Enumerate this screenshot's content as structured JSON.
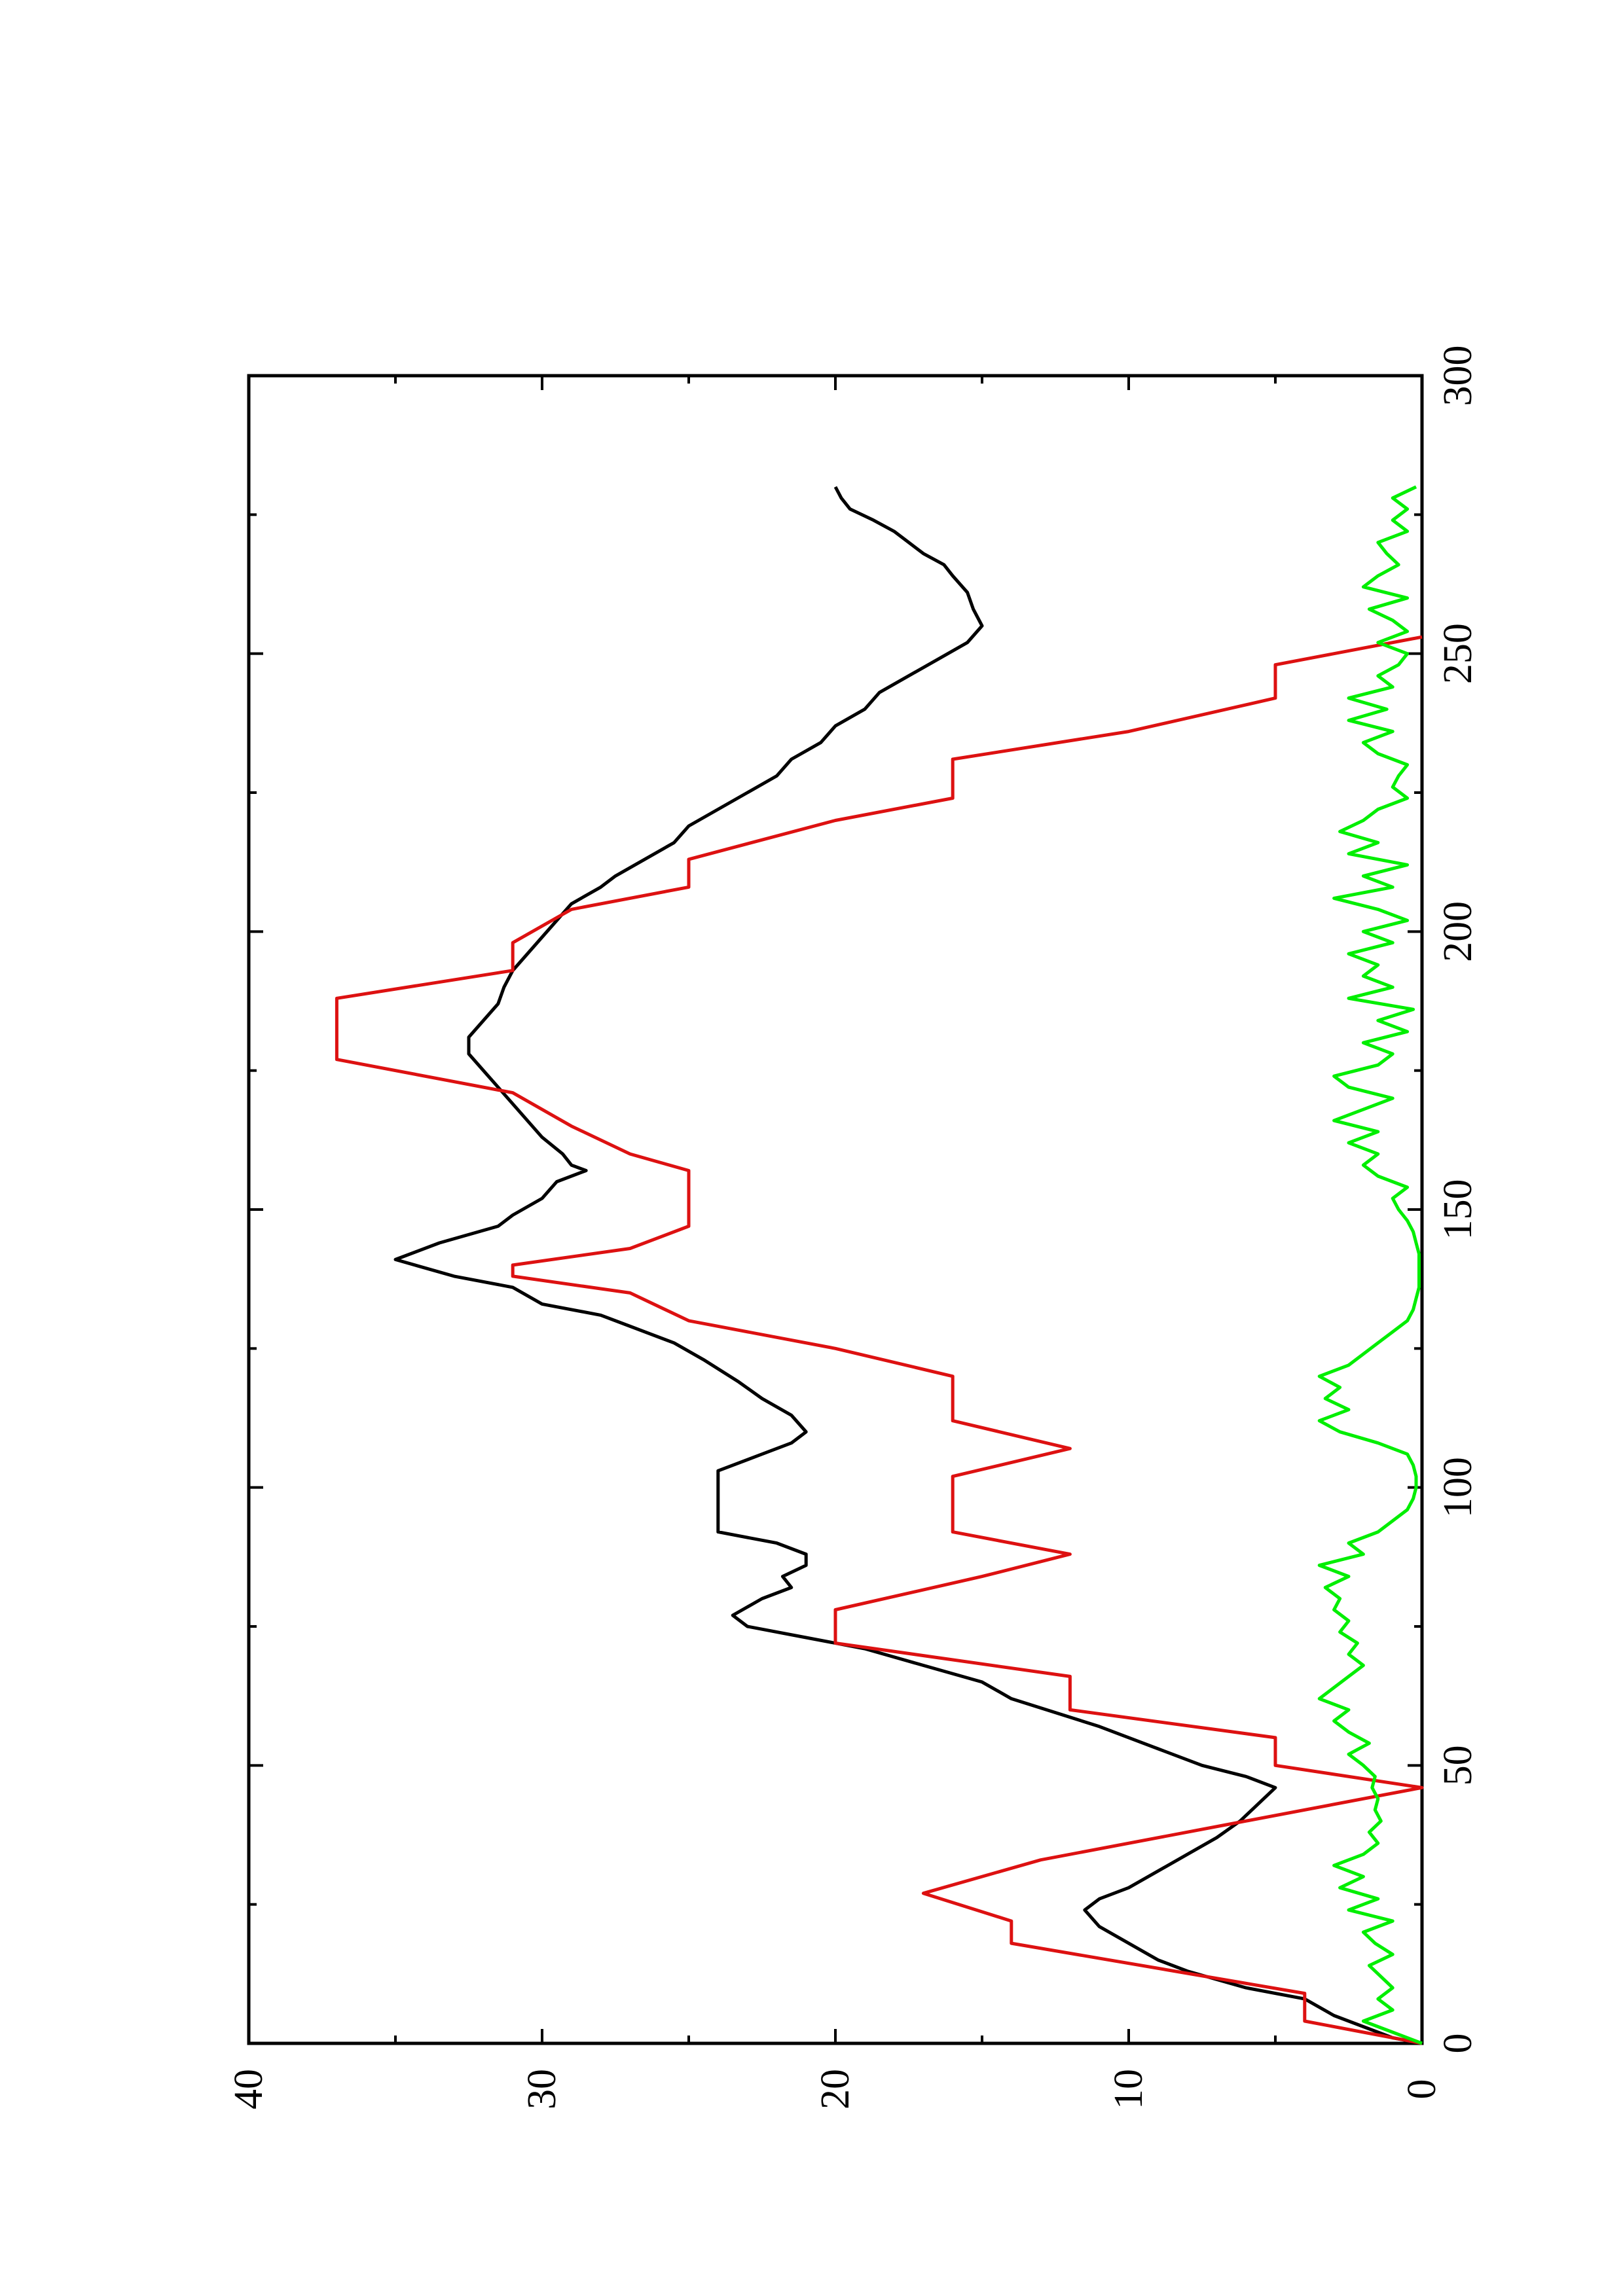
{
  "chart_data": {
    "type": "line",
    "orientation": "rotated-90-ccw",
    "xlim": [
      0,
      300
    ],
    "ylim": [
      0,
      40
    ],
    "x_ticks": [
      "0",
      "50",
      "100",
      "150",
      "200",
      "250",
      "300"
    ],
    "y_ticks": [
      "0",
      "10",
      "20",
      "30",
      "40"
    ],
    "x_minor_step": 25,
    "y_minor_step": 5,
    "grid": false,
    "series": [
      {
        "color": "#000000",
        "points": [
          [
            0,
            0
          ],
          [
            1,
            1
          ],
          [
            3,
            2
          ],
          [
            5,
            3
          ],
          [
            8,
            4
          ],
          [
            10,
            6
          ],
          [
            13,
            8
          ],
          [
            15,
            9
          ],
          [
            18,
            10
          ],
          [
            21,
            11
          ],
          [
            24,
            11.5
          ],
          [
            26,
            11
          ],
          [
            28,
            10
          ],
          [
            31,
            9
          ],
          [
            34,
            8
          ],
          [
            37,
            7
          ],
          [
            40,
            6.2
          ],
          [
            43,
            5.6
          ],
          [
            46,
            5
          ],
          [
            48,
            6
          ],
          [
            50,
            7.5
          ],
          [
            53,
            9
          ],
          [
            57,
            11
          ],
          [
            62,
            14
          ],
          [
            65,
            15
          ],
          [
            68,
            17
          ],
          [
            71,
            19
          ],
          [
            73,
            21
          ],
          [
            75,
            23
          ],
          [
            77,
            23.5
          ],
          [
            80,
            22.5
          ],
          [
            82,
            21.5
          ],
          [
            84,
            21.8
          ],
          [
            86,
            21
          ],
          [
            88,
            21
          ],
          [
            90,
            22
          ],
          [
            92,
            24
          ],
          [
            96,
            24
          ],
          [
            100,
            24
          ],
          [
            103,
            24
          ],
          [
            106,
            22.5
          ],
          [
            108,
            21.5
          ],
          [
            110,
            21
          ],
          [
            113,
            21.5
          ],
          [
            116,
            22.5
          ],
          [
            119,
            23.3
          ],
          [
            123,
            24.5
          ],
          [
            126,
            25.5
          ],
          [
            129,
            27
          ],
          [
            131,
            28
          ],
          [
            133,
            30
          ],
          [
            136,
            31
          ],
          [
            138,
            33
          ],
          [
            141,
            35
          ],
          [
            144,
            33.5
          ],
          [
            147,
            31.5
          ],
          [
            149,
            31
          ],
          [
            152,
            30
          ],
          [
            155,
            29.5
          ],
          [
            157,
            28.5
          ],
          [
            158,
            29
          ],
          [
            160,
            29.3
          ],
          [
            163,
            30
          ],
          [
            166,
            30.5
          ],
          [
            169,
            31
          ],
          [
            172,
            31.5
          ],
          [
            175,
            32
          ],
          [
            178,
            32.5
          ],
          [
            181,
            32.5
          ],
          [
            184,
            32
          ],
          [
            187,
            31.5
          ],
          [
            190,
            31.3
          ],
          [
            193,
            31
          ],
          [
            196,
            30.5
          ],
          [
            199,
            30
          ],
          [
            202,
            29.5
          ],
          [
            205,
            29
          ],
          [
            208,
            28
          ],
          [
            210,
            27.5
          ],
          [
            213,
            26.5
          ],
          [
            216,
            25.5
          ],
          [
            219,
            25
          ],
          [
            222,
            24
          ],
          [
            225,
            23
          ],
          [
            228,
            22
          ],
          [
            231,
            21.5
          ],
          [
            234,
            20.5
          ],
          [
            237,
            20
          ],
          [
            240,
            19
          ],
          [
            243,
            18.5
          ],
          [
            246,
            17.5
          ],
          [
            249,
            16.5
          ],
          [
            252,
            15.5
          ],
          [
            255,
            15
          ],
          [
            258,
            15.3
          ],
          [
            261,
            15.5
          ],
          [
            264,
            16
          ],
          [
            266,
            16.3
          ],
          [
            268,
            17
          ],
          [
            270,
            17.5
          ],
          [
            272,
            18
          ],
          [
            274,
            18.7
          ],
          [
            276,
            19.5
          ],
          [
            278,
            19.8
          ],
          [
            280,
            20
          ]
        ]
      },
      {
        "color": "#dd1111",
        "points": [
          [
            0,
            0
          ],
          [
            4,
            4
          ],
          [
            9,
            4
          ],
          [
            18,
            14
          ],
          [
            22,
            14
          ],
          [
            27,
            17
          ],
          [
            33,
            13
          ],
          [
            46,
            0
          ],
          [
            50,
            5
          ],
          [
            55,
            5
          ],
          [
            60,
            12
          ],
          [
            66,
            12
          ],
          [
            72,
            20
          ],
          [
            78,
            20
          ],
          [
            84,
            15
          ],
          [
            88,
            12
          ],
          [
            92,
            16
          ],
          [
            102,
            16
          ],
          [
            107,
            12
          ],
          [
            112,
            16
          ],
          [
            120,
            16
          ],
          [
            125,
            20
          ],
          [
            130,
            25
          ],
          [
            135,
            27
          ],
          [
            138,
            31
          ],
          [
            140,
            31
          ],
          [
            143,
            27
          ],
          [
            147,
            25
          ],
          [
            149,
            25
          ],
          [
            157,
            25
          ],
          [
            160,
            27
          ],
          [
            165,
            29
          ],
          [
            171,
            31
          ],
          [
            177,
            37
          ],
          [
            182,
            37
          ],
          [
            188,
            37
          ],
          [
            193,
            31
          ],
          [
            198,
            31
          ],
          [
            204,
            29
          ],
          [
            208,
            25
          ],
          [
            213,
            25
          ],
          [
            220,
            20
          ],
          [
            224,
            16
          ],
          [
            231,
            16
          ],
          [
            236,
            10
          ],
          [
            242,
            5
          ],
          [
            248,
            5
          ],
          [
            253,
            0
          ]
        ]
      },
      {
        "color": "#00ee00",
        "points": [
          [
            0,
            0
          ],
          [
            2,
            1
          ],
          [
            4,
            2
          ],
          [
            6,
            1
          ],
          [
            8,
            1.5
          ],
          [
            10,
            1
          ],
          [
            12,
            1.4
          ],
          [
            14,
            1.8
          ],
          [
            16,
            1
          ],
          [
            18,
            1.6
          ],
          [
            20,
            2
          ],
          [
            22,
            1
          ],
          [
            24,
            2.5
          ],
          [
            26,
            1.5
          ],
          [
            28,
            2.8
          ],
          [
            30,
            2
          ],
          [
            32,
            3
          ],
          [
            34,
            2
          ],
          [
            36,
            1.5
          ],
          [
            38,
            1.8
          ],
          [
            40,
            1.4
          ],
          [
            42,
            1.6
          ],
          [
            44,
            1.5
          ],
          [
            46,
            1.7
          ],
          [
            48,
            1.6
          ],
          [
            50,
            2
          ],
          [
            52,
            2.5
          ],
          [
            54,
            1.8
          ],
          [
            56,
            2.5
          ],
          [
            58,
            3
          ],
          [
            60,
            2.5
          ],
          [
            62,
            3.5
          ],
          [
            64,
            3
          ],
          [
            66,
            2.5
          ],
          [
            68,
            2
          ],
          [
            70,
            2.5
          ],
          [
            72,
            2.2
          ],
          [
            74,
            2.8
          ],
          [
            76,
            2.5
          ],
          [
            78,
            3
          ],
          [
            80,
            2.8
          ],
          [
            82,
            3.3
          ],
          [
            84,
            2.5
          ],
          [
            86,
            3.5
          ],
          [
            88,
            2
          ],
          [
            90,
            2.5
          ],
          [
            92,
            1.5
          ],
          [
            94,
            1
          ],
          [
            96,
            0.5
          ],
          [
            98,
            0.3
          ],
          [
            100,
            0.2
          ],
          [
            102,
            0.2
          ],
          [
            104,
            0.3
          ],
          [
            106,
            0.5
          ],
          [
            108,
            1.5
          ],
          [
            110,
            2.8
          ],
          [
            112,
            3.5
          ],
          [
            114,
            2.5
          ],
          [
            116,
            3.3
          ],
          [
            118,
            2.8
          ],
          [
            120,
            3.5
          ],
          [
            122,
            2.5
          ],
          [
            124,
            2
          ],
          [
            126,
            1.5
          ],
          [
            128,
            1
          ],
          [
            130,
            0.5
          ],
          [
            132,
            0.3
          ],
          [
            134,
            0.2
          ],
          [
            136,
            0.1
          ],
          [
            138,
            0.1
          ],
          [
            140,
            0.1
          ],
          [
            142,
            0.1
          ],
          [
            144,
            0.2
          ],
          [
            146,
            0.3
          ],
          [
            148,
            0.5
          ],
          [
            150,
            0.8
          ],
          [
            152,
            1
          ],
          [
            154,
            0.5
          ],
          [
            156,
            1.5
          ],
          [
            158,
            2
          ],
          [
            160,
            1.5
          ],
          [
            162,
            2.5
          ],
          [
            164,
            1.5
          ],
          [
            166,
            3
          ],
          [
            168,
            2
          ],
          [
            170,
            1
          ],
          [
            172,
            2.5
          ],
          [
            174,
            3
          ],
          [
            176,
            1.5
          ],
          [
            178,
            1
          ],
          [
            180,
            2
          ],
          [
            182,
            0.5
          ],
          [
            184,
            1.5
          ],
          [
            186,
            0.3
          ],
          [
            188,
            2.5
          ],
          [
            190,
            1
          ],
          [
            192,
            2
          ],
          [
            194,
            1.5
          ],
          [
            196,
            2.5
          ],
          [
            198,
            1
          ],
          [
            200,
            2
          ],
          [
            202,
            0.5
          ],
          [
            204,
            1.5
          ],
          [
            206,
            3
          ],
          [
            208,
            1
          ],
          [
            210,
            2
          ],
          [
            212,
            0.5
          ],
          [
            214,
            2.5
          ],
          [
            216,
            1.5
          ],
          [
            218,
            2.8
          ],
          [
            220,
            2
          ],
          [
            222,
            1.5
          ],
          [
            224,
            0.5
          ],
          [
            226,
            1
          ],
          [
            228,
            0.8
          ],
          [
            230,
            0.5
          ],
          [
            232,
            1.5
          ],
          [
            234,
            2
          ],
          [
            236,
            1
          ],
          [
            238,
            2.5
          ],
          [
            240,
            1.2
          ],
          [
            242,
            2.5
          ],
          [
            244,
            1
          ],
          [
            246,
            1.5
          ],
          [
            248,
            0.8
          ],
          [
            250,
            0.5
          ],
          [
            252,
            1.5
          ],
          [
            254,
            0.5
          ],
          [
            256,
            1
          ],
          [
            258,
            1.8
          ],
          [
            260,
            0.5
          ],
          [
            262,
            2
          ],
          [
            264,
            1.5
          ],
          [
            266,
            0.8
          ],
          [
            268,
            1.2
          ],
          [
            270,
            1.5
          ],
          [
            272,
            0.5
          ],
          [
            274,
            1
          ],
          [
            276,
            0.5
          ],
          [
            278,
            1
          ],
          [
            280,
            0.2
          ]
        ]
      }
    ]
  }
}
